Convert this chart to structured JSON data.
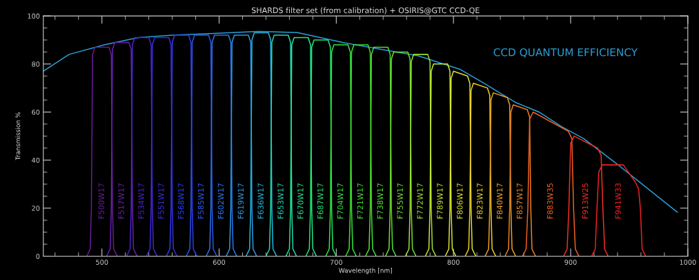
{
  "chart_data": {
    "type": "line",
    "title": "SHARDS filter set (from calibration) + OSIRIS@GTC CCD-QE",
    "xlabel": "Wavelength [nm]",
    "ylabel": "Transmission %",
    "xlim": [
      450,
      1000
    ],
    "xticks": [
      500,
      600,
      700,
      800,
      900,
      1000
    ],
    "ylim": [
      0,
      100
    ],
    "yticks": [
      0,
      20,
      40,
      60,
      80,
      100
    ],
    "grid": false,
    "legend": false,
    "marker": "none",
    "line_style": "solid",
    "series": [
      {
        "name": "CCD QUANTUM EFFICIENCY",
        "color": "#2aa0d8",
        "x": [
          450,
          472,
          502,
          531,
          560,
          589,
          634,
          667,
          706,
          770,
          806,
          826,
          853,
          873,
          892,
          911,
          939,
          991
        ],
        "values": [
          77,
          84,
          88,
          91,
          92,
          92.6,
          93.6,
          93.1,
          88.9,
          83.4,
          77.7,
          72,
          64,
          60,
          54,
          49,
          38.6,
          18.3
        ]
      },
      {
        "name": "F500W17",
        "color": "#6a1b9a",
        "x": [
          487,
          490,
          491,
          492,
          494,
          506,
          508,
          509,
          510,
          513
        ],
        "values": [
          0,
          3,
          20,
          84,
          87,
          87,
          84,
          20,
          3,
          0
        ]
      },
      {
        "name": "F517W17",
        "color": "#6a1fb0",
        "x": [
          504,
          507,
          508,
          509,
          511,
          523,
          525,
          526,
          527,
          530
        ],
        "values": [
          0,
          3,
          20,
          86,
          89,
          89,
          86,
          20,
          3,
          0
        ]
      },
      {
        "name": "F534W17",
        "color": "#4b22c8",
        "x": [
          521,
          524,
          525,
          526,
          528,
          540,
          542,
          543,
          544,
          547
        ],
        "values": [
          0,
          3,
          20,
          88,
          91,
          91,
          88,
          20,
          3,
          0
        ]
      },
      {
        "name": "F551W17",
        "color": "#3a2ae0",
        "x": [
          538,
          541,
          542,
          543,
          545,
          557,
          559,
          560,
          561,
          564
        ],
        "values": [
          0,
          3,
          20,
          88,
          91,
          91,
          88,
          20,
          3,
          0
        ]
      },
      {
        "name": "F568W17",
        "color": "#2a3cf0",
        "x": [
          555,
          558,
          559,
          560,
          562,
          574,
          576,
          577,
          578,
          581
        ],
        "values": [
          0,
          3,
          20,
          89,
          92,
          92,
          89,
          20,
          3,
          0
        ]
      },
      {
        "name": "F585W17",
        "color": "#2a55f0",
        "x": [
          572,
          575,
          576,
          577,
          579,
          591,
          593,
          594,
          595,
          598
        ],
        "values": [
          0,
          3,
          20,
          89,
          92,
          92,
          89,
          20,
          3,
          0
        ]
      },
      {
        "name": "F602W17",
        "color": "#2a75f0",
        "x": [
          589,
          592,
          593,
          594,
          596,
          608,
          610,
          611,
          612,
          615
        ],
        "values": [
          0,
          3,
          20,
          89,
          92,
          92,
          89,
          20,
          3,
          0
        ]
      },
      {
        "name": "F619W17",
        "color": "#2a9ae8",
        "x": [
          606,
          609,
          610,
          611,
          613,
          625,
          627,
          628,
          629,
          632
        ],
        "values": [
          0,
          3,
          20,
          89,
          92,
          92,
          89,
          20,
          3,
          0
        ]
      },
      {
        "name": "F636W17",
        "color": "#20b8e0",
        "x": [
          623,
          626,
          627,
          628,
          630,
          642,
          644,
          645,
          646,
          649
        ],
        "values": [
          0,
          3,
          20,
          90,
          93,
          93,
          90,
          20,
          3,
          0
        ]
      },
      {
        "name": "F653W17",
        "color": "#20d8b0",
        "x": [
          640,
          643,
          644,
          645,
          647,
          659,
          661,
          662,
          663,
          666
        ],
        "values": [
          0,
          3,
          20,
          89,
          92,
          92,
          89,
          20,
          3,
          0
        ]
      },
      {
        "name": "F670W17",
        "color": "#20e890",
        "x": [
          657,
          660,
          661,
          662,
          664,
          676,
          678,
          679,
          680,
          683
        ],
        "values": [
          0,
          3,
          20,
          88,
          91,
          91,
          88,
          20,
          3,
          0
        ]
      },
      {
        "name": "F687W17",
        "color": "#20e870",
        "x": [
          674,
          677,
          678,
          679,
          681,
          693,
          695,
          696,
          697,
          700
        ],
        "values": [
          0,
          3,
          20,
          87,
          90,
          90,
          87,
          20,
          3,
          0
        ]
      },
      {
        "name": "F704W17",
        "color": "#30e840",
        "x": [
          691,
          694,
          695,
          696,
          698,
          710,
          712,
          713,
          714,
          717
        ],
        "values": [
          0,
          3,
          20,
          85,
          88,
          88,
          85,
          20,
          3,
          0
        ]
      },
      {
        "name": "F721W17",
        "color": "#40e030",
        "x": [
          708,
          711,
          712,
          713,
          715,
          727,
          729,
          730,
          731,
          734
        ],
        "values": [
          0,
          3,
          20,
          85,
          88,
          88,
          85,
          20,
          3,
          0
        ]
      },
      {
        "name": "F738W17",
        "color": "#50e030",
        "x": [
          725,
          728,
          729,
          730,
          732,
          744,
          746,
          747,
          748,
          751
        ],
        "values": [
          0,
          3,
          20,
          84,
          87,
          87,
          84,
          20,
          3,
          0
        ]
      },
      {
        "name": "F755W17",
        "color": "#70e030",
        "x": [
          742,
          745,
          746,
          747,
          749,
          761,
          763,
          764,
          765,
          768
        ],
        "values": [
          0,
          3,
          20,
          82,
          85,
          85,
          82,
          20,
          3,
          0
        ]
      },
      {
        "name": "F772W17",
        "color": "#a0e030",
        "x": [
          759,
          762,
          763,
          764,
          766,
          778,
          780,
          781,
          782,
          785
        ],
        "values": [
          0,
          3,
          20,
          81,
          84,
          84,
          81,
          20,
          3,
          0
        ]
      },
      {
        "name": "F789W17",
        "color": "#c8e830",
        "x": [
          776,
          779,
          780,
          781,
          783,
          795,
          797,
          798,
          799,
          802
        ],
        "values": [
          0,
          3,
          20,
          77,
          80,
          80,
          77,
          20,
          3,
          0
        ]
      },
      {
        "name": "F806W17",
        "color": "#e0e030",
        "x": [
          793,
          796,
          797,
          798,
          800,
          812,
          814,
          815,
          816,
          819
        ],
        "values": [
          0,
          3,
          20,
          74,
          77,
          75,
          72,
          20,
          3,
          0
        ]
      },
      {
        "name": "F823W17",
        "color": "#f0d020",
        "x": [
          810,
          813,
          814,
          815,
          817,
          829,
          831,
          832,
          833,
          836
        ],
        "values": [
          0,
          3,
          20,
          69,
          72,
          70,
          67,
          20,
          3,
          0
        ]
      },
      {
        "name": "F840W17",
        "color": "#f0a020",
        "x": [
          827,
          830,
          831,
          832,
          834,
          846,
          848,
          849,
          850,
          853
        ],
        "values": [
          0,
          3,
          20,
          65,
          68,
          66,
          63,
          20,
          3,
          0
        ]
      },
      {
        "name": "F857W17",
        "color": "#f08020",
        "x": [
          844,
          847,
          848,
          849,
          851,
          863,
          865,
          866,
          867,
          870
        ],
        "values": [
          0,
          3,
          20,
          60,
          63,
          61,
          58,
          20,
          3,
          0
        ]
      },
      {
        "name": "F883W35",
        "color": "#f06020",
        "x": [
          859,
          862,
          863.5,
          865,
          868,
          898,
          901,
          902.5,
          904,
          907
        ],
        "values": [
          0,
          3,
          20,
          57,
          60,
          52,
          49,
          20,
          3,
          0
        ]
      },
      {
        "name": "F913W25",
        "color": "#f03020",
        "x": [
          894,
          897,
          898.5,
          900,
          903,
          923,
          926,
          927.5,
          929,
          932
        ],
        "values": [
          0,
          3,
          20,
          47,
          50,
          45,
          42,
          20,
          3,
          0
        ]
      },
      {
        "name": "F941W33",
        "color": "#f02020",
        "x": [
          918,
          921,
          922.5,
          924,
          927,
          945,
          955,
          958,
          959.5,
          961,
          964
        ],
        "values": [
          0,
          3,
          20,
          35,
          38,
          38,
          31,
          28,
          20,
          3,
          0
        ]
      }
    ]
  }
}
